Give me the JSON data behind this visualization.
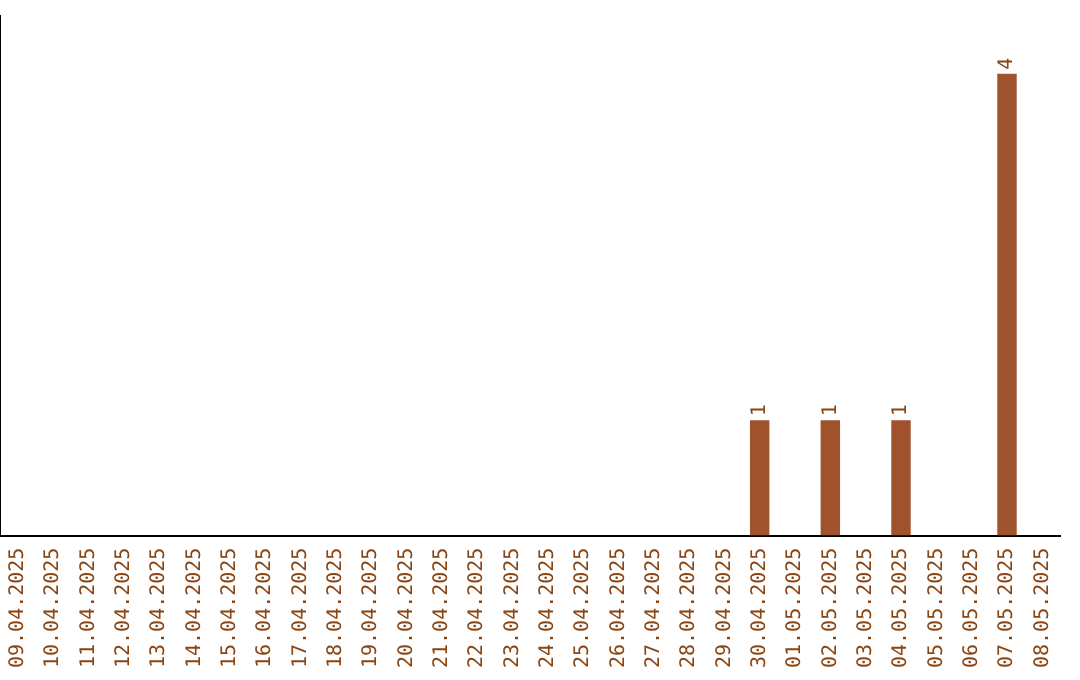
{
  "chart_data": {
    "type": "bar",
    "categories": [
      "09.04.2025",
      "10.04.2025",
      "11.04.2025",
      "12.04.2025",
      "13.04.2025",
      "14.04.2025",
      "15.04.2025",
      "16.04.2025",
      "17.04.2025",
      "18.04.2025",
      "19.04.2025",
      "20.04.2025",
      "21.04.2025",
      "22.04.2025",
      "23.04.2025",
      "24.04.2025",
      "25.04.2025",
      "26.04.2025",
      "27.04.2025",
      "28.04.2025",
      "29.04.2025",
      "30.04.2025",
      "01.05.2025",
      "02.05.2025",
      "03.05.2025",
      "04.05.2025",
      "05.05.2025",
      "06.05.2025",
      "07.05.2025",
      "08.05.2025"
    ],
    "values": [
      null,
      null,
      null,
      null,
      null,
      null,
      null,
      null,
      null,
      null,
      null,
      null,
      null,
      null,
      null,
      null,
      null,
      null,
      null,
      null,
      null,
      1,
      null,
      1,
      null,
      1,
      null,
      null,
      4,
      null
    ],
    "value_labels": [
      null,
      null,
      null,
      null,
      null,
      null,
      null,
      null,
      null,
      null,
      null,
      null,
      null,
      null,
      null,
      null,
      null,
      null,
      null,
      null,
      null,
      "1",
      null,
      "1",
      null,
      "1",
      null,
      null,
      "4",
      null
    ],
    "color": "#a0522d",
    "grid": false,
    "legend": false,
    "tick_labels": "x"
  }
}
